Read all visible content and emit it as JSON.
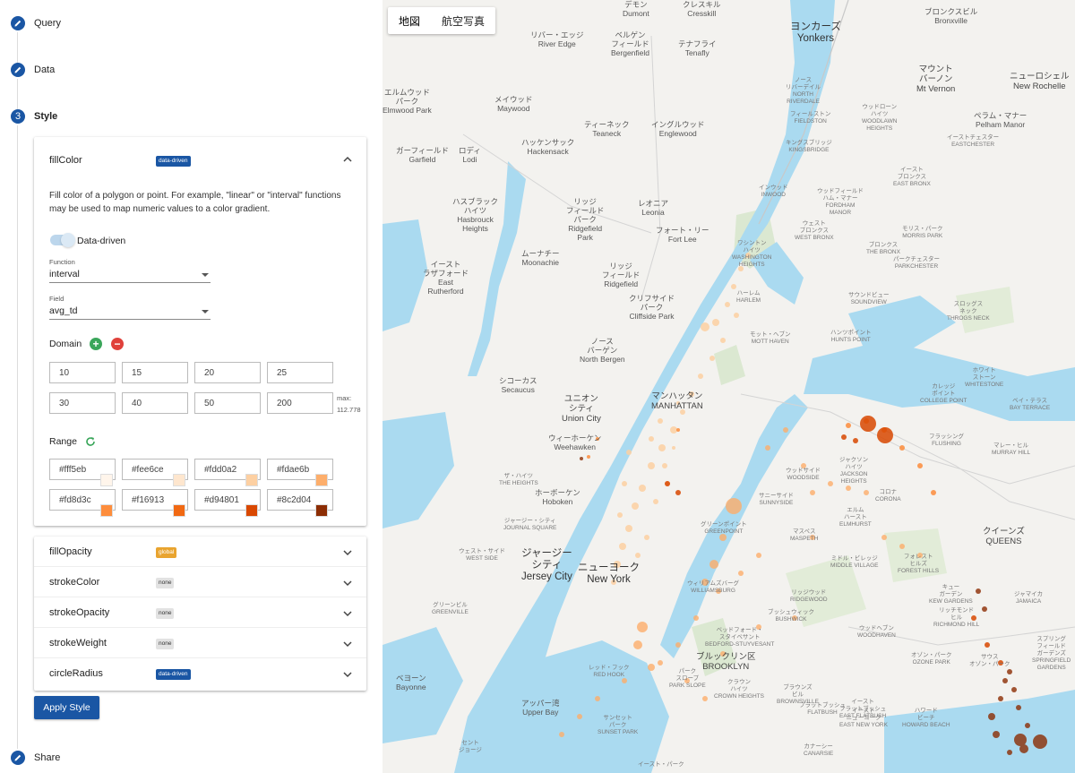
{
  "steps": {
    "query": {
      "label": "Query"
    },
    "data": {
      "label": "Data"
    },
    "style": {
      "number": "3",
      "label": "Style"
    },
    "share": {
      "label": "Share"
    }
  },
  "fill": {
    "title": "fillColor",
    "badge": "data-driven",
    "description": "Fill color of a polygon or point. For example, \"linear\" or \"interval\" functions may be used to map numeric values to a color gradient.",
    "toggle_label": "Data-driven",
    "toggle_on": true,
    "function_label": "Function",
    "function_value": "interval",
    "field_label": "Field",
    "field_value": "avg_td",
    "domain_title": "Domain",
    "domain": [
      "10",
      "15",
      "20",
      "25",
      "30",
      "40",
      "50",
      "200"
    ],
    "domain_max_label": "max:",
    "domain_max_value": "112.778",
    "range_title": "Range",
    "range": [
      "#fff5eb",
      "#fee6ce",
      "#fdd0a2",
      "#fdae6b",
      "#fd8d3c",
      "#f16913",
      "#d94801",
      "#8c2d04"
    ]
  },
  "properties": [
    {
      "title": "fillOpacity",
      "badge": "global",
      "kind": "global"
    },
    {
      "title": "strokeColor",
      "badge": "none",
      "kind": "none"
    },
    {
      "title": "strokeOpacity",
      "badge": "none",
      "kind": "none"
    },
    {
      "title": "strokeWeight",
      "badge": "none",
      "kind": "none"
    },
    {
      "title": "circleRadius",
      "badge": "data-driven",
      "kind": "dd"
    }
  ],
  "apply_label": "Apply Style",
  "map": {
    "tabs": [
      "地図",
      "航空写真"
    ],
    "labels": [
      {
        "t": "デモン\nDumont",
        "c": "ml"
      },
      {
        "t": "クレスキル\nCresskill",
        "c": "ml"
      },
      {
        "t": "ヨンカーズ\nYonkers",
        "c": "ml big"
      },
      {
        "t": "ブロンクスビル\nBronxville",
        "c": "ml"
      },
      {
        "t": "リバー・エッジ\nRiver Edge",
        "c": "ml"
      },
      {
        "t": "ベルゲン\nフィールド\nBergenfield",
        "c": "ml"
      },
      {
        "t": "テナフライ\nTenafly",
        "c": "ml"
      },
      {
        "t": "マウント\nバーノン\nMt Vernon",
        "c": "ml mid"
      },
      {
        "t": "ニューロシェル\nNew Rochelle",
        "c": "ml mid"
      },
      {
        "t": "エルムウッド\nパーク\nElmwood Park",
        "c": "ml"
      },
      {
        "t": "メイウッド\nMaywood",
        "c": "ml"
      },
      {
        "t": "ティーネック\nTeaneck",
        "c": "ml"
      },
      {
        "t": "イングルウッド\nEnglewood",
        "c": "ml"
      },
      {
        "t": "ペラム・マナー\nPelham Manor",
        "c": "ml"
      },
      {
        "t": "ガーフィールド\nGarfield",
        "c": "ml"
      },
      {
        "t": "ロディ\nLodi",
        "c": "ml"
      },
      {
        "t": "ハッケンサック\nHackensack",
        "c": "ml"
      },
      {
        "t": "ハスブラック\nハイツ\nHasbrouck\nHeights",
        "c": "ml"
      },
      {
        "t": "リッジ\nフィールド\nパーク\nRidgefield\nPark",
        "c": "ml"
      },
      {
        "t": "レオニア\nLeonia",
        "c": "ml"
      },
      {
        "t": "フォート・リー\nFort Lee",
        "c": "ml"
      },
      {
        "t": "ムーナチー\nMoonachie",
        "c": "ml"
      },
      {
        "t": "イースト\nラザフォード\nEast\nRutherford",
        "c": "ml"
      },
      {
        "t": "リッジ\nフィールド\nRidgefield",
        "c": "ml"
      },
      {
        "t": "クリフサイド\nパーク\nCliffside Park",
        "c": "ml"
      },
      {
        "t": "ノース\nバーゲン\nNorth Bergen",
        "c": "ml"
      },
      {
        "t": "シコーカス\nSecaucus",
        "c": "ml"
      },
      {
        "t": "ユニオン\nシティ\nUnion City",
        "c": "ml mid"
      },
      {
        "t": "マンハッタン\nMANHATTAN",
        "c": "ml mid"
      },
      {
        "t": "ウィーホーケン\nWeehawken",
        "c": "ml"
      },
      {
        "t": "ホーボーケン\nHoboken",
        "c": "ml"
      },
      {
        "t": "ジャージー\nシティ\nJersey City",
        "c": "ml big"
      },
      {
        "t": "ニューヨーク\nNew York",
        "c": "ml big"
      },
      {
        "t": "クイーンズ\nQUEENS",
        "c": "ml mid"
      },
      {
        "t": "ブルックリン区\nBROOKLYN",
        "c": "ml mid"
      },
      {
        "t": "ベヨーン\nBayonne",
        "c": "ml"
      },
      {
        "t": "アッパー湾\nUpper Bay",
        "c": "ml"
      },
      {
        "t": "ブロンクス\nTHE BRONX",
        "c": "ml sm"
      },
      {
        "t": "ウィリアムズバーグ\nWILLIAMSBURG",
        "c": "ml sm"
      },
      {
        "t": "リッジウッド\nRIDGEWOOD",
        "c": "ml sm"
      },
      {
        "t": "ジャマイカ\nJAMAICA",
        "c": "ml sm"
      },
      {
        "t": "フォレスト\nヒルズ\nFOREST HILLS",
        "c": "ml sm"
      },
      {
        "t": "ウッドサイド\nWOODSIDE",
        "c": "ml sm"
      },
      {
        "t": "エルム\nハースト\nELMHURST",
        "c": "ml sm"
      },
      {
        "t": "コロナ\nCORONA",
        "c": "ml sm"
      },
      {
        "t": "フラッシング\nFLUSHING",
        "c": "ml sm"
      },
      {
        "t": "マスペス\nMASPETH",
        "c": "ml sm"
      },
      {
        "t": "サニーサイド\nSUNNYSIDE",
        "c": "ml sm"
      },
      {
        "t": "グリーンポイント\nGREENPOINT",
        "c": "ml sm"
      },
      {
        "t": "ブッシュウィック\nBUSHWICK",
        "c": "ml sm"
      },
      {
        "t": "ベッドフォード・\nスタイベサント\nBEDFORD-STUYVESANT",
        "c": "ml sm"
      },
      {
        "t": "クラウン\nハイツ\nCROWN HEIGHTS",
        "c": "ml sm"
      },
      {
        "t": "ブラウンズ\nビル\nBROWNSVILLE",
        "c": "ml sm"
      },
      {
        "t": "イースト\nフラットブッシュ\nEAST FLATBUSH",
        "c": "ml sm"
      },
      {
        "t": "イースト\nニューヨーク\nEAST NEW YORK",
        "c": "ml sm"
      },
      {
        "t": "ハワード\nビーチ\nHOWARD BEACH",
        "c": "ml sm"
      },
      {
        "t": "オゾン・パーク\nOZONE PARK",
        "c": "ml sm"
      },
      {
        "t": "リッチモンド\nヒル\nRICHMOND HILL",
        "c": "ml sm"
      },
      {
        "t": "ハンツポイント\nHUNTS POINT",
        "c": "ml sm"
      },
      {
        "t": "サウンドビュー\nSOUNDVIEW",
        "c": "ml sm"
      },
      {
        "t": "パークチェスター\nPARKCHESTER",
        "c": "ml sm"
      },
      {
        "t": "ワシントン\nハイツ\nWASHINGTON\nHEIGHTS",
        "c": "ml sm"
      },
      {
        "t": "ハーレム\nHARLEM",
        "c": "ml sm"
      },
      {
        "t": "モット・ヘブン\nMOTT HAVEN",
        "c": "ml sm"
      },
      {
        "t": "ホワイト\nストーン\nWHITESTONE",
        "c": "ml sm"
      },
      {
        "t": "カレッジ\nポイント\nCOLLEGE POINT",
        "c": "ml sm"
      },
      {
        "t": "ベイ・テラス\nBAY TERRACE",
        "c": "ml sm"
      },
      {
        "t": "マレー・ヒル\nMURRAY HILL",
        "c": "ml sm"
      },
      {
        "t": "レッド・フック\nRED HOOK",
        "c": "ml sm"
      },
      {
        "t": "パーク\nスロープ\nPARK SLOPE",
        "c": "ml sm"
      },
      {
        "t": "サンセット\nパーク\nSUNSET PARK",
        "c": "ml sm"
      },
      {
        "t": "フラットブッシュ\nFLATBUSH",
        "c": "ml sm"
      },
      {
        "t": "カナーシー\nCANARSIE",
        "c": "ml sm"
      },
      {
        "t": "ジャクソン\nハイツ\nJACKSON\nHEIGHTS",
        "c": "ml sm"
      },
      {
        "t": "ミドル・ビレッジ\nMIDDLE VILLAGE",
        "c": "ml sm"
      },
      {
        "t": "ウッドヘブン\nWOODHAVEN",
        "c": "ml sm"
      },
      {
        "t": "イースト\nブロンクス\nEAST BRONX",
        "c": "ml sm"
      },
      {
        "t": "モリス・パーク\nMORRIS PARK",
        "c": "ml sm"
      },
      {
        "t": "キングスブリッジ\nKINGSBRIDGE",
        "c": "ml sm"
      },
      {
        "t": "ノース\nリバーデイル\nNORTH\nRIVERDALE",
        "c": "ml sm"
      },
      {
        "t": "フィールストン\nFIELDSTON",
        "c": "ml sm"
      },
      {
        "t": "ウェスト\nブロンクス\nWEST BRONX",
        "c": "ml sm"
      },
      {
        "t": "イーストチェスター\nEASTCHESTER",
        "c": "ml sm"
      },
      {
        "t": "ウッドローン\nハイツ\nWOODLAWN\nHEIGHTS",
        "c": "ml sm"
      },
      {
        "t": "スロッグス\nネック\nTHROGS NECK",
        "c": "ml sm"
      },
      {
        "t": "サウス\nオゾン・パーク",
        "c": "ml sm"
      },
      {
        "t": "スプリング\nフィールド\nガーデンズ\nSPRINGFIELD\nGARDENS",
        "c": "ml sm"
      },
      {
        "t": "ジャージー・シティ\nJOURNAL SQUARE",
        "c": "ml sm"
      },
      {
        "t": "ウェスト・サイド\nWEST SIDE",
        "c": "ml sm"
      },
      {
        "t": "グリーンビル\nGREENVILLE",
        "c": "ml sm"
      },
      {
        "t": "ザ・ハイツ\nTHE HEIGHTS",
        "c": "ml sm"
      },
      {
        "t": "キュー\nガーデン\nKEW GARDENS",
        "c": "ml sm"
      },
      {
        "t": "インウッド\nINWOOD",
        "c": "ml sm"
      },
      {
        "t": "ウッドフィールド\nハム・マナー\nFORDHAM\nMANOR",
        "c": "ml sm"
      },
      {
        "t": "セント\nジョージ",
        "c": "ml sm"
      },
      {
        "t": "イースト・パーク",
        "c": "ml sm"
      }
    ]
  }
}
